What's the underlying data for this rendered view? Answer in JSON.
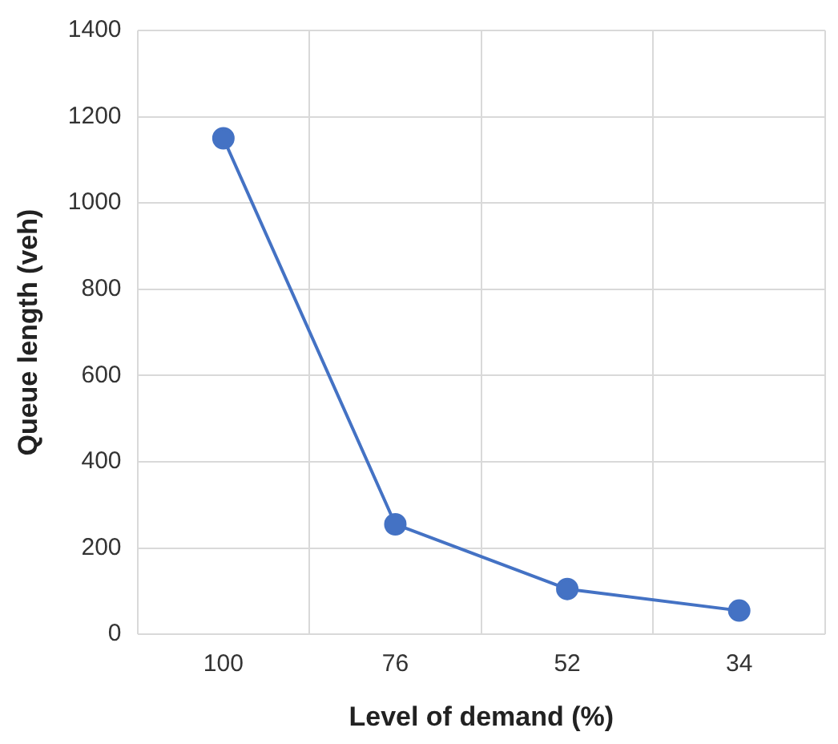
{
  "chart_data": {
    "type": "line",
    "xlabel": "Level of demand (%)",
    "ylabel": "Queue length (veh)",
    "categories": [
      "100",
      "76",
      "52",
      "34"
    ],
    "series": [
      {
        "color": "#4472c4",
        "values": [
          1150,
          255,
          105,
          55
        ]
      }
    ],
    "ylim": [
      0,
      1400
    ],
    "yticks": [
      0,
      200,
      400,
      600,
      800,
      1000,
      1200,
      1400
    ],
    "grid": true,
    "legend": false,
    "marker": "circle",
    "line_style": "solid"
  }
}
